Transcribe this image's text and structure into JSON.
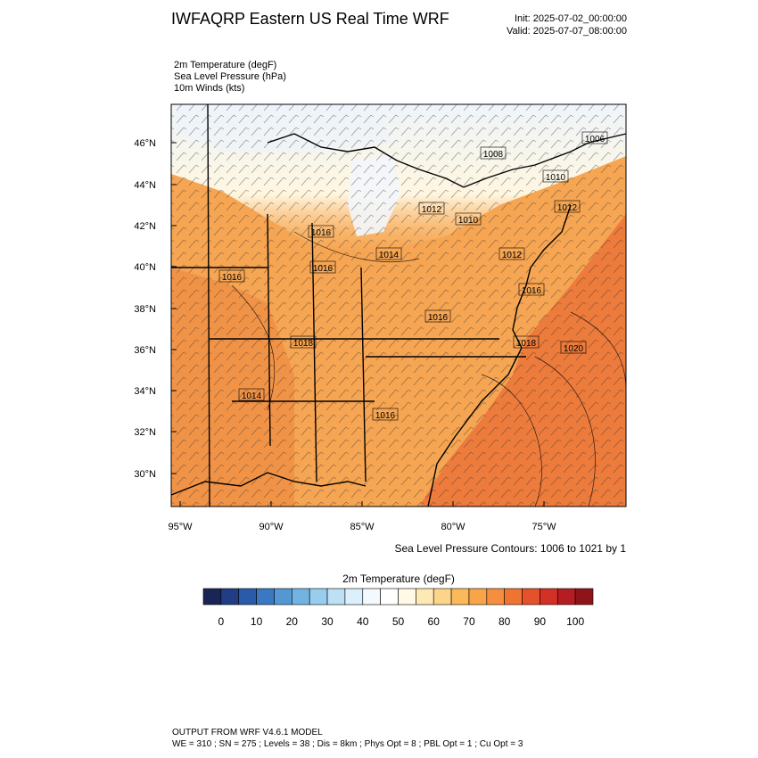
{
  "header": {
    "title": "IWFAQRP Eastern US Real Time WRF",
    "init": "Init: 2025-07-02_00:00:00",
    "valid": "Valid: 2025-07-07_08:00:00"
  },
  "fields": [
    "2m Temperature   (degF)",
    "Sea Level Pressure   (hPa)",
    "10m Winds   (kts)"
  ],
  "map": {
    "lat_labels": [
      "46°N",
      "44°N",
      "42°N",
      "40°N",
      "38°N",
      "36°N",
      "34°N",
      "32°N",
      "30°N"
    ],
    "lon_labels": [
      "95°W",
      "90°W",
      "85°W",
      "80°W",
      "75°W"
    ],
    "isobar_labels": [
      "1006",
      "1008",
      "1010",
      "1012",
      "1012",
      "1010",
      "1016",
      "1014",
      "1016",
      "1016",
      "1012",
      "1016",
      "1016",
      "1018",
      "1020",
      "1018",
      "1014",
      "1016"
    ],
    "contour_note": "Sea Level Pressure Contours: 1006 to 1021 by 1"
  },
  "colorbar": {
    "title": "2m Temperature  (degF)",
    "ticks": [
      0,
      10,
      20,
      30,
      40,
      50,
      60,
      70,
      80,
      90,
      100
    ],
    "colors": [
      "#1a2557",
      "#213d85",
      "#2a5ba8",
      "#3a78c2",
      "#5397d3",
      "#73b3e2",
      "#98cdee",
      "#bde0f5",
      "#dcf0fb",
      "#f3f9fd",
      "#ffffff",
      "#fff9e6",
      "#fde9b3",
      "#fdd58a",
      "#fbb95a",
      "#f8a448",
      "#f58e3e",
      "#ef7432",
      "#e4512b",
      "#d23126",
      "#b41d22",
      "#8e1419"
    ]
  },
  "footer": {
    "line1": "OUTPUT FROM WRF V4.6.1 MODEL",
    "line2": "WE = 310 ; SN = 275 ; Levels = 38 ; Dis = 8km ; Phys Opt = 8 ; PBL Opt = 1 ; Cu Opt = 3"
  }
}
